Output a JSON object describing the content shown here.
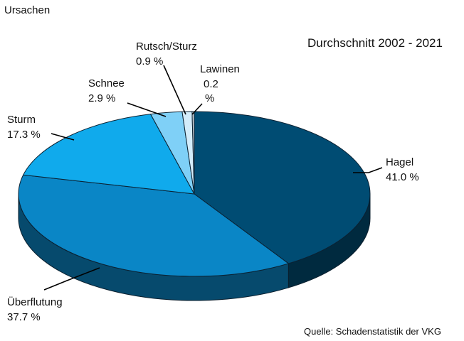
{
  "chart_data": {
    "type": "pie",
    "title": "Durchschnitt 2002 - 2021",
    "legend_title": "Ursachen",
    "source": "Quelle: Schadenstatistik der VKG",
    "slices": [
      {
        "label": "Hagel",
        "value": 41.0,
        "value_text": "41.0 %",
        "color": "#004c73"
      },
      {
        "label": "Überflutung",
        "value": 37.7,
        "value_text": "37.7 %",
        "color": "#0a86c6"
      },
      {
        "label": "Sturm",
        "value": 17.3,
        "value_text": "17.3 %",
        "color": "#10aaec"
      },
      {
        "label": "Schnee",
        "value": 2.9,
        "value_text": "2.9 %",
        "color": "#7fd0f7"
      },
      {
        "label": "Rutsch/Sturz",
        "value": 0.9,
        "value_text": "0.9 %",
        "color": "#d3ecfa"
      },
      {
        "label": "Lawinen",
        "value": 0.2,
        "value_text_lines": [
          "0.2",
          "%"
        ],
        "color": "#c9cfd6"
      }
    ]
  }
}
